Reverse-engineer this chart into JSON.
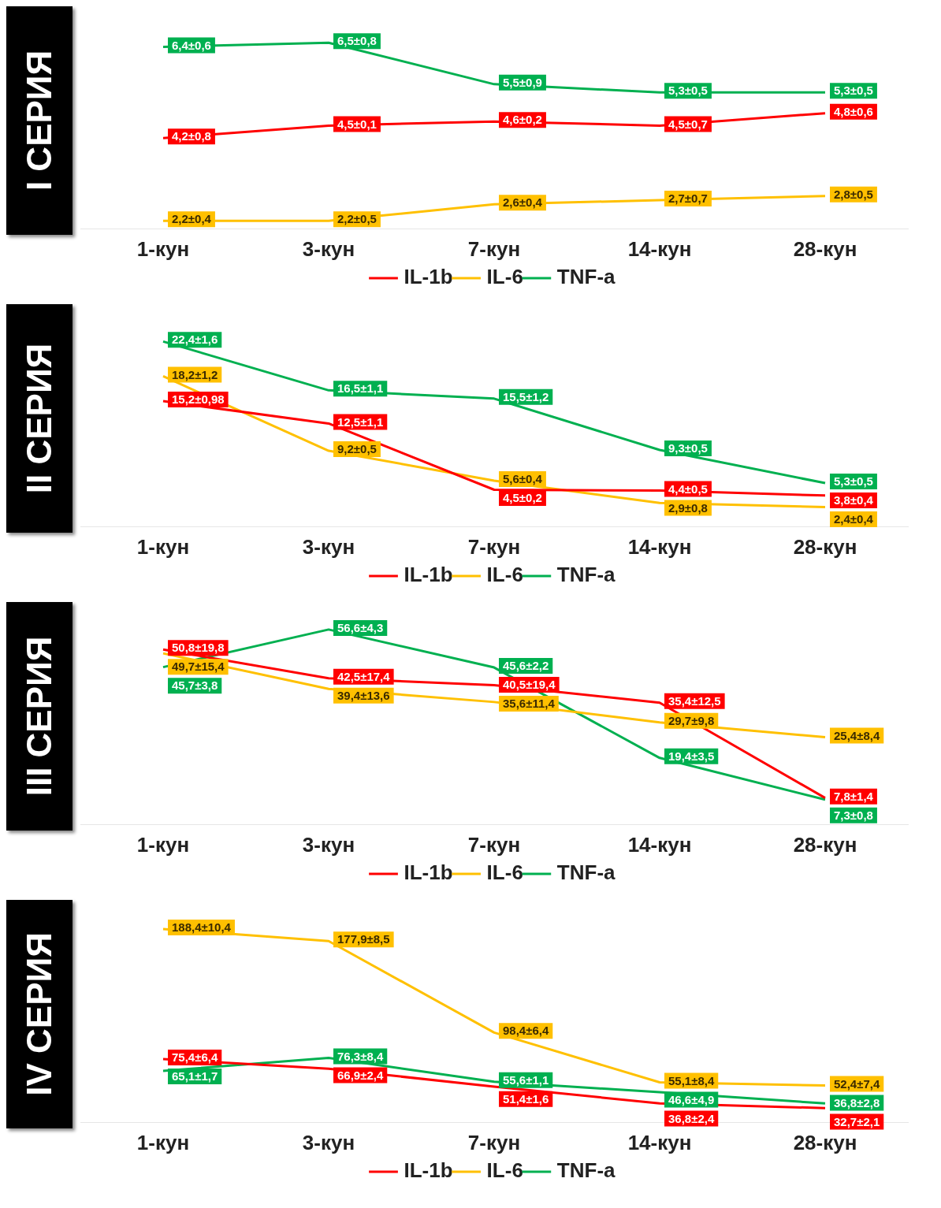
{
  "chart_data": [
    {
      "type": "line",
      "title": "I СЕРИЯ",
      "categories": [
        "1-кун",
        "3-кун",
        "7-кун",
        "14-кун",
        "28-кун"
      ],
      "legend": "bottom",
      "tick_labels": "x",
      "series": [
        {
          "name": "IL-1b",
          "color": "#ff0000",
          "values": [
            4.2,
            4.5,
            4.6,
            4.5,
            4.8
          ],
          "value_labels": [
            "4,2±0,8",
            "4,5±0,1",
            "4,6±0,2",
            "4,5±0,7",
            "4,8±0,6"
          ]
        },
        {
          "name": "IL-6",
          "color": "#ffc000",
          "values": [
            2.2,
            2.2,
            2.6,
            2.7,
            2.8
          ],
          "value_labels": [
            "2,2±0,4",
            "2,2±0,5",
            "2,6±0,4",
            "2,7±0,7",
            "2,8±0,5"
          ]
        },
        {
          "name": "TNF-a",
          "color": "#00b050",
          "values": [
            6.4,
            6.5,
            5.5,
            5.3,
            5.3
          ],
          "value_labels": [
            "6,4±0,6",
            "6,5±0,8",
            "5,5±0,9",
            "5,3±0,5",
            "5,3±0,5"
          ]
        }
      ]
    },
    {
      "type": "line",
      "title": "II СЕРИЯ",
      "categories": [
        "1-кун",
        "3-кун",
        "7-кун",
        "14-кун",
        "28-кун"
      ],
      "legend": "bottom",
      "tick_labels": "x",
      "series": [
        {
          "name": "IL-1b",
          "color": "#ff0000",
          "values": [
            15.2,
            12.5,
            4.5,
            4.4,
            3.8
          ],
          "value_labels": [
            "15,2±0,98",
            "12,5±1,1",
            "4,5±0,2",
            "4,4±0,5",
            "3,8±0,4"
          ]
        },
        {
          "name": "IL-6",
          "color": "#ffc000",
          "values": [
            18.2,
            9.2,
            5.6,
            2.9,
            2.4
          ],
          "value_labels": [
            "18,2±1,2",
            "9,2±0,5",
            "5,6±0,4",
            "2,9±0,8",
            "2,4±0,4"
          ]
        },
        {
          "name": "TNF-a",
          "color": "#00b050",
          "values": [
            22.4,
            16.5,
            15.5,
            9.3,
            5.3
          ],
          "value_labels": [
            "22,4±1,6",
            "16,5±1,1",
            "15,5±1,2",
            "9,3±0,5",
            "5,3±0,5"
          ]
        }
      ]
    },
    {
      "type": "line",
      "title": "III СЕРИЯ",
      "categories": [
        "1-кун",
        "3-кун",
        "7-кун",
        "14-кун",
        "28-кун"
      ],
      "legend": "bottom",
      "tick_labels": "x",
      "series": [
        {
          "name": "IL-1b",
          "color": "#ff0000",
          "values": [
            50.8,
            42.5,
            40.5,
            35.4,
            7.8
          ],
          "value_labels": [
            "50,8±19,8",
            "42,5±17,4",
            "40,5±19,4",
            "35,4±12,5",
            "7,8±1,4"
          ]
        },
        {
          "name": "IL-6",
          "color": "#ffc000",
          "values": [
            49.7,
            39.4,
            35.6,
            29.7,
            25.4
          ],
          "value_labels": [
            "49,7±15,4",
            "39,4±13,6",
            "35,6±11,4",
            "29,7±9,8",
            "25,4±8,4"
          ]
        },
        {
          "name": "TNF-a",
          "color": "#00b050",
          "values": [
            45.7,
            56.6,
            45.6,
            19.4,
            7.3
          ],
          "value_labels": [
            "45,7±3,8",
            "56,6±4,3",
            "45,6±2,2",
            "19,4±3,5",
            "7,3±0,8"
          ]
        }
      ]
    },
    {
      "type": "line",
      "title": "IV СЕРИЯ",
      "categories": [
        "1-кун",
        "3-кун",
        "7-кун",
        "14-кун",
        "28-кун"
      ],
      "legend": "bottom",
      "tick_labels": "x",
      "series": [
        {
          "name": "IL-1b",
          "color": "#ff0000",
          "values": [
            75.4,
            66.9,
            51.4,
            36.8,
            32.7
          ],
          "value_labels": [
            "75,4±6,4",
            "66,9±2,4",
            "51,4±1,6",
            "36,8±2,4",
            "32,7±2,1"
          ]
        },
        {
          "name": "IL-6",
          "color": "#ffc000",
          "values": [
            188.4,
            177.9,
            98.4,
            55.1,
            52.4
          ],
          "value_labels": [
            "188,4±10,4",
            "177,9±8,5",
            "98,4±6,4",
            "55,1±8,4",
            "52,4±7,4"
          ]
        },
        {
          "name": "TNF-a",
          "color": "#00b050",
          "values": [
            65.1,
            76.3,
            55.6,
            46.6,
            36.8
          ],
          "value_labels": [
            "65,1±1,7",
            "76,3±8,4",
            "55,6±1,1",
            "46,6±4,9",
            "36,8±2,8"
          ]
        }
      ]
    }
  ]
}
